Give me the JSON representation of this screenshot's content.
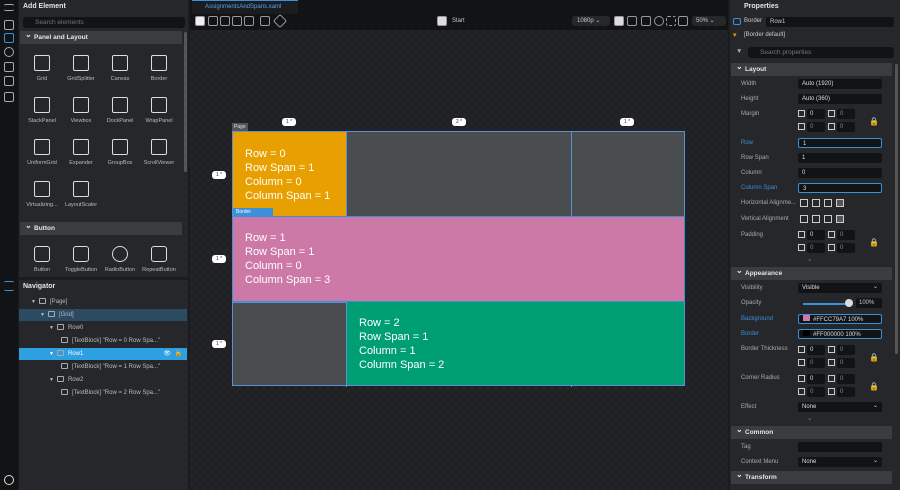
{
  "left": {
    "title": "Add Element",
    "search_placeholder": "Search elements",
    "sections": [
      {
        "label": "Panel and Layout"
      },
      {
        "label": "Button"
      }
    ],
    "layout_items": [
      "Grid",
      "GridSplitter",
      "Canvas",
      "Border",
      "StackPanel",
      "Viewbox",
      "DockPanel",
      "WrapPanel",
      "UniformGrid",
      "Expander",
      "GroupBox",
      "ScrollViewer",
      "Virtualizing...",
      "LayoutScaler"
    ],
    "button_items": [
      "Button",
      "ToggleButton",
      "RadioButton",
      "RepeatButton"
    ]
  },
  "navigator": {
    "title": "Navigator",
    "items": [
      {
        "label": "[Page]",
        "indent": 0
      },
      {
        "label": "[Grid]",
        "indent": 1,
        "state": "parent"
      },
      {
        "label": "Row0",
        "indent": 2
      },
      {
        "label": "[TextBlock] \"Row = 0 Row Spa...\"",
        "indent": 3
      },
      {
        "label": "Row1",
        "indent": 2,
        "state": "selected"
      },
      {
        "label": "[TextBlock] \"Row = 1 Row Spa...\"",
        "indent": 3
      },
      {
        "label": "Row2",
        "indent": 2
      },
      {
        "label": "[TextBlock] \"Row = 2 Row Spa...\"",
        "indent": 3
      }
    ]
  },
  "tab": {
    "label": "AssignmentsAndSpans.xaml"
  },
  "toolbar": {
    "start": "Start",
    "resolution": "1080p",
    "zoom": "50%"
  },
  "canvas": {
    "page_label": "Page",
    "border_label": "Border",
    "col_markers": [
      "1 *",
      "2 *",
      "1 *"
    ],
    "row_markers": [
      "1 *",
      "1 *",
      "1 *"
    ],
    "cells": [
      {
        "lines": [
          "Row = 0",
          "Row Span = 1",
          "Column = 0",
          "Column Span = 1"
        ],
        "color": "#E8A000"
      },
      {
        "lines": [
          "Row = 1",
          "Row Span = 1",
          "Column = 0",
          "Column Span = 3"
        ],
        "color": "#CC79A7"
      },
      {
        "lines": [
          "Row = 2",
          "Row Span = 1",
          "Column = 1",
          "Column Span = 2"
        ],
        "color": "#009E73"
      }
    ]
  },
  "properties": {
    "title": "Properties",
    "type": "Border",
    "name": "Row1",
    "style": "[Border default]",
    "search_placeholder": "Search properties",
    "layout": {
      "label": "Layout",
      "width_label": "Width",
      "width": "Auto (1920)",
      "height_label": "Height",
      "height": "Auto (360)",
      "margin_label": "Margin",
      "margin": [
        "0",
        "0",
        "0",
        "0"
      ],
      "row_label": "Row",
      "row": "1",
      "rowspan_label": "Row Span",
      "rowspan": "1",
      "column_label": "Column",
      "column": "0",
      "colspan_label": "Column Span",
      "colspan": "3",
      "halign_label": "Horizontal Alignme...",
      "valign_label": "Vertical Alignment",
      "padding_label": "Padding",
      "padding": [
        "0",
        "0",
        "0",
        "0"
      ]
    },
    "appearance": {
      "label": "Appearance",
      "visibility_label": "Visibility",
      "visibility": "Visible",
      "opacity_label": "Opacity",
      "opacity": "100%",
      "background_label": "Background",
      "background": "#FFCC79A7",
      "background_pct": "100%",
      "background_swatch": "#CC79A7",
      "border_label": "Border",
      "border": "#FF000000",
      "border_pct": "100%",
      "thickness_label": "Border Thickness",
      "thickness": [
        "0",
        "0",
        "0",
        "0"
      ],
      "radius_label": "Corner Radius",
      "radius": [
        "0",
        "0",
        "0",
        "0"
      ],
      "effect_label": "Effect",
      "effect": "None"
    },
    "common": {
      "label": "Common",
      "tag_label": "Tag",
      "tag": "",
      "context_label": "Context Menu",
      "context": "None"
    },
    "transform": {
      "label": "Transform"
    }
  }
}
